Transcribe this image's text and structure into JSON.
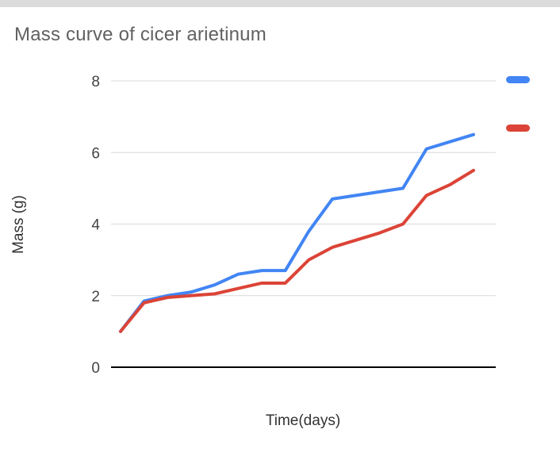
{
  "page": {
    "title": "Mass curve of cicer arietinum",
    "xlabel": "Time(days)",
    "ylabel": "Mass (g)"
  },
  "colors": {
    "series_blue": "#4285f4",
    "series_red": "#db4437",
    "gridline": "#d9d9d9",
    "axis_line": "#000000",
    "title_text": "#616161",
    "tick_text": "#444444"
  },
  "legend": {
    "swatches": [
      {
        "name": "blue-series-swatch",
        "color": "#4285f4"
      },
      {
        "name": "red-series-swatch",
        "color": "#db4437"
      }
    ]
  },
  "chart_data": {
    "type": "line",
    "title": "Mass curve of cicer arietinum",
    "xlabel": "Time(days)",
    "ylabel": "Mass (g)",
    "ylim": [
      0,
      8
    ],
    "yticks": [
      0,
      2,
      4,
      6,
      8
    ],
    "grid": true,
    "legend_position": "right",
    "x": [
      1,
      2,
      3,
      4,
      5,
      6,
      7,
      8,
      9,
      10,
      11,
      12,
      13,
      14,
      15,
      16
    ],
    "series": [
      {
        "name": "",
        "color": "#4285f4",
        "values": [
          1.0,
          1.85,
          2.0,
          2.1,
          2.3,
          2.6,
          2.7,
          2.7,
          3.8,
          4.7,
          4.8,
          4.9,
          5.0,
          6.1,
          6.3,
          6.5
        ]
      },
      {
        "name": "",
        "color": "#db4437",
        "values": [
          1.0,
          1.8,
          1.95,
          2.0,
          2.05,
          2.2,
          2.35,
          2.35,
          3.0,
          3.35,
          3.55,
          3.75,
          4.0,
          4.8,
          5.1,
          5.5
        ]
      }
    ]
  }
}
